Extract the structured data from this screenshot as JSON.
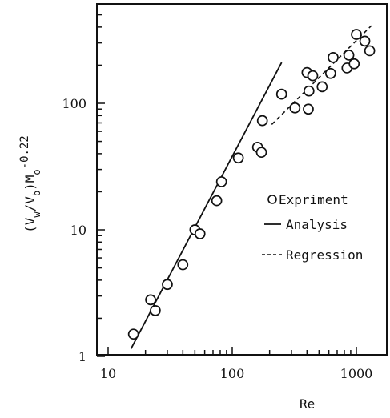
{
  "chart_data": {
    "type": "scatter",
    "x_scale": "log",
    "y_scale": "log",
    "xlim": [
      10,
      1500
    ],
    "ylim": [
      1,
      500
    ],
    "xticks": [
      10,
      100,
      1000
    ],
    "yticks": [
      1,
      10,
      100
    ],
    "xtick_labels": [
      "10",
      "100",
      "1000"
    ],
    "ytick_labels": [
      "1",
      "10",
      "100"
    ],
    "xlabel": "Re",
    "ylabel": "(V_w/V_b)M_o^-0.22",
    "legend_position": "right",
    "series": [
      {
        "name": "Expriment",
        "kind": "points",
        "marker": "open-circle",
        "x": [
          16,
          22,
          24,
          30,
          40,
          50,
          55,
          75,
          82,
          112,
          160,
          172,
          175,
          250,
          320,
          400,
          410,
          415,
          445,
          530,
          620,
          650,
          840,
          870,
          960,
          1000,
          1170,
          1280
        ],
        "y": [
          1.5,
          2.8,
          2.3,
          3.7,
          5.3,
          10,
          9.3,
          17,
          24,
          37,
          45,
          41,
          73,
          118,
          92,
          175,
          90,
          125,
          165,
          135,
          172,
          230,
          190,
          240,
          205,
          350,
          310,
          260
        ]
      },
      {
        "name": "Analysis",
        "kind": "line",
        "style": "solid",
        "x": [
          15.3,
          250
        ],
        "y": [
          1.15,
          210
        ]
      },
      {
        "name": "Regression",
        "kind": "line",
        "style": "dashed",
        "x": [
          208,
          1320
        ],
        "y": [
          68,
          410
        ]
      }
    ]
  }
}
